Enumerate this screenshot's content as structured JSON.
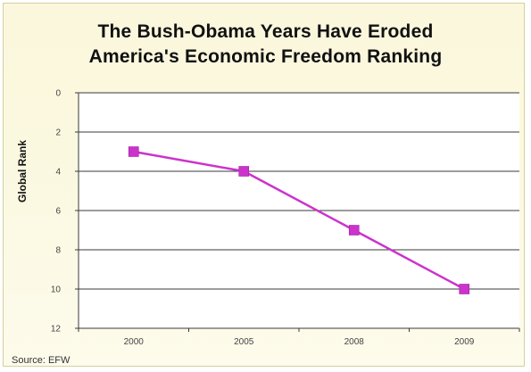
{
  "chart_data": {
    "type": "line",
    "title_line1": "The Bush-Obama Years Have Eroded",
    "title_line2": "America's Economic Freedom Ranking",
    "ylabel": "Global Rank",
    "xlabel": "",
    "categories": [
      "2000",
      "2005",
      "2008",
      "2009"
    ],
    "series": [
      {
        "values": [
          3,
          4,
          7,
          10
        ],
        "color": "#cc33cc"
      }
    ],
    "yticks": [
      "0",
      "2",
      "4",
      "6",
      "8",
      "10",
      "12"
    ],
    "ylim": [
      0,
      12
    ],
    "y_inverted": true,
    "grid": true,
    "marker": "square",
    "source": "Source: EFW"
  }
}
